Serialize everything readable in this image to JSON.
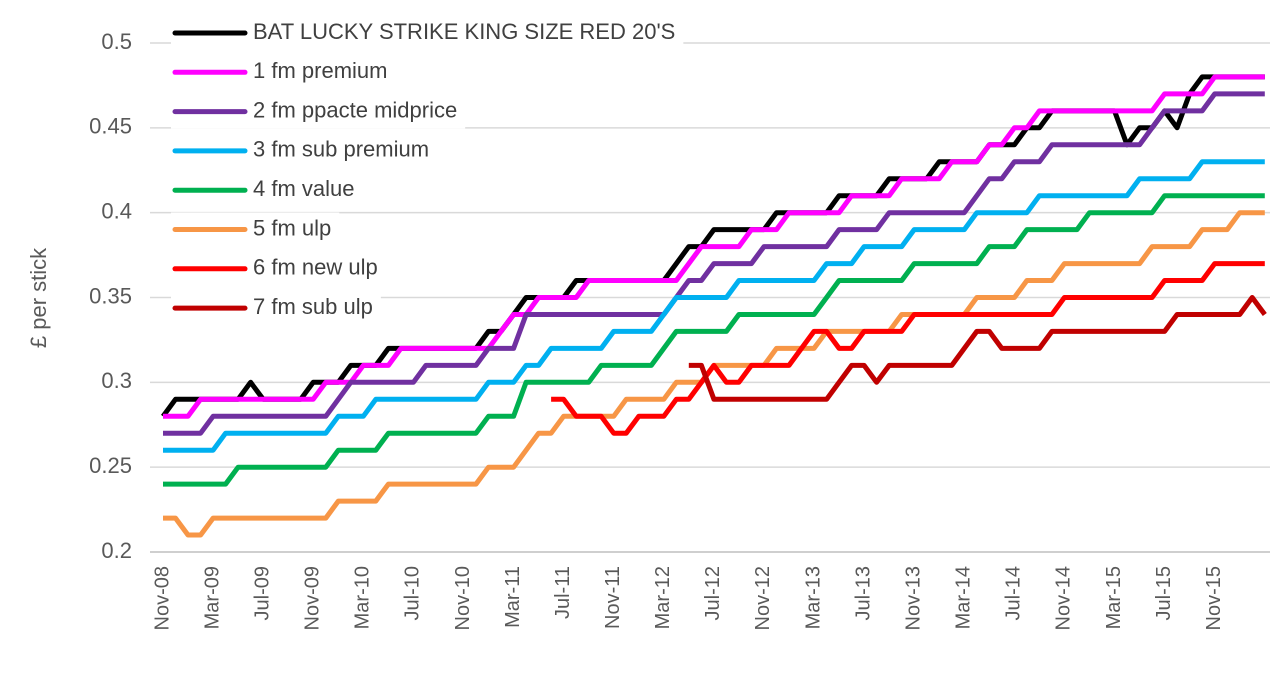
{
  "chart_data": {
    "type": "line",
    "y_label": "£ per stick",
    "categories": [
      "Nov-08",
      null,
      null,
      null,
      "Mar-09",
      null,
      null,
      null,
      "Jul-09",
      null,
      null,
      null,
      "Nov-09",
      null,
      null,
      null,
      "Mar-10",
      null,
      null,
      null,
      "Jul-10",
      null,
      null,
      null,
      "Nov-10",
      null,
      null,
      null,
      "Mar-11",
      null,
      null,
      null,
      "Jul-11",
      null,
      null,
      null,
      "Nov-11",
      null,
      null,
      null,
      "Mar-12",
      null,
      null,
      null,
      "Jul-12",
      null,
      null,
      null,
      "Nov-12",
      null,
      null,
      null,
      "Mar-13",
      null,
      null,
      null,
      "Jul-13",
      null,
      null,
      null,
      "Nov-13",
      null,
      null,
      null,
      "Mar-14",
      null,
      null,
      null,
      "Jul-14",
      null,
      null,
      null,
      "Nov-14",
      null,
      null,
      null,
      "Mar-15",
      null,
      null,
      null,
      "Jul-15",
      null,
      null,
      null,
      "Nov-15",
      null,
      null,
      null,
      null
    ],
    "ylim": [
      0.2,
      0.5
    ],
    "yticks": [
      0.2,
      0.25,
      0.3,
      0.35,
      0.4,
      0.45,
      0.5
    ],
    "grid": true,
    "legend": "upper-left",
    "series": [
      {
        "name": "BAT  LUCKY STRIKE KING SIZE RED 20'S",
        "color": "#000000",
        "values": [
          0.28,
          0.29,
          0.29,
          0.29,
          0.29,
          0.29,
          0.29,
          0.3,
          0.29,
          0.29,
          0.29,
          0.29,
          0.3,
          0.3,
          0.3,
          0.31,
          0.31,
          0.31,
          0.32,
          0.32,
          0.32,
          0.32,
          0.32,
          0.32,
          0.32,
          0.32,
          0.33,
          0.33,
          0.34,
          0.35,
          0.35,
          0.35,
          0.35,
          0.36,
          0.36,
          0.36,
          0.36,
          0.36,
          0.36,
          0.36,
          0.36,
          0.37,
          0.38,
          0.38,
          0.39,
          0.39,
          0.39,
          0.39,
          0.39,
          0.4,
          0.4,
          0.4,
          0.4,
          0.4,
          0.41,
          0.41,
          0.41,
          0.41,
          0.42,
          0.42,
          0.42,
          0.42,
          0.43,
          0.43,
          0.43,
          0.43,
          0.44,
          0.44,
          0.44,
          0.45,
          0.45,
          0.46,
          0.46,
          0.46,
          0.46,
          0.46,
          0.46,
          0.44,
          0.45,
          0.45,
          0.46,
          0.45,
          0.47,
          0.48,
          0.48,
          0.48,
          0.48,
          0.48,
          0.48
        ]
      },
      {
        "name": "1 fm premium",
        "color": "#ff00ff",
        "values": [
          0.28,
          0.28,
          0.28,
          0.29,
          0.29,
          0.29,
          0.29,
          0.29,
          0.29,
          0.29,
          0.29,
          0.29,
          0.29,
          0.3,
          0.3,
          0.3,
          0.31,
          0.31,
          0.31,
          0.32,
          0.32,
          0.32,
          0.32,
          0.32,
          0.32,
          0.32,
          0.32,
          0.33,
          0.34,
          0.34,
          0.35,
          0.35,
          0.35,
          0.35,
          0.36,
          0.36,
          0.36,
          0.36,
          0.36,
          0.36,
          0.36,
          0.36,
          0.37,
          0.38,
          0.38,
          0.38,
          0.38,
          0.39,
          0.39,
          0.39,
          0.4,
          0.4,
          0.4,
          0.4,
          0.4,
          0.41,
          0.41,
          0.41,
          0.41,
          0.42,
          0.42,
          0.42,
          0.42,
          0.43,
          0.43,
          0.43,
          0.44,
          0.44,
          0.45,
          0.45,
          0.46,
          0.46,
          0.46,
          0.46,
          0.46,
          0.46,
          0.46,
          0.46,
          0.46,
          0.46,
          0.47,
          0.47,
          0.47,
          0.47,
          0.48,
          0.48,
          0.48,
          0.48,
          0.48
        ]
      },
      {
        "name": "2 fm ppacte midprice",
        "color": "#7030a0",
        "values": [
          0.27,
          0.27,
          0.27,
          0.27,
          0.28,
          0.28,
          0.28,
          0.28,
          0.28,
          0.28,
          0.28,
          0.28,
          0.28,
          0.28,
          0.29,
          0.3,
          0.3,
          0.3,
          0.3,
          0.3,
          0.3,
          0.31,
          0.31,
          0.31,
          0.31,
          0.31,
          0.32,
          0.32,
          0.32,
          0.34,
          0.34,
          0.34,
          0.34,
          0.34,
          0.34,
          0.34,
          0.34,
          0.34,
          0.34,
          0.34,
          0.34,
          0.35,
          0.36,
          0.36,
          0.37,
          0.37,
          0.37,
          0.37,
          0.38,
          0.38,
          0.38,
          0.38,
          0.38,
          0.38,
          0.39,
          0.39,
          0.39,
          0.39,
          0.4,
          0.4,
          0.4,
          0.4,
          0.4,
          0.4,
          0.4,
          0.41,
          0.42,
          0.42,
          0.43,
          0.43,
          0.43,
          0.44,
          0.44,
          0.44,
          0.44,
          0.44,
          0.44,
          0.44,
          0.44,
          0.45,
          0.46,
          0.46,
          0.46,
          0.46,
          0.47,
          0.47,
          0.47,
          0.47,
          0.47
        ]
      },
      {
        "name": "3 fm sub premium",
        "color": "#00b0f0",
        "values": [
          0.26,
          0.26,
          0.26,
          0.26,
          0.26,
          0.27,
          0.27,
          0.27,
          0.27,
          0.27,
          0.27,
          0.27,
          0.27,
          0.27,
          0.28,
          0.28,
          0.28,
          0.29,
          0.29,
          0.29,
          0.29,
          0.29,
          0.29,
          0.29,
          0.29,
          0.29,
          0.3,
          0.3,
          0.3,
          0.31,
          0.31,
          0.32,
          0.32,
          0.32,
          0.32,
          0.32,
          0.33,
          0.33,
          0.33,
          0.33,
          0.34,
          0.35,
          0.35,
          0.35,
          0.35,
          0.35,
          0.36,
          0.36,
          0.36,
          0.36,
          0.36,
          0.36,
          0.36,
          0.37,
          0.37,
          0.37,
          0.38,
          0.38,
          0.38,
          0.38,
          0.39,
          0.39,
          0.39,
          0.39,
          0.39,
          0.4,
          0.4,
          0.4,
          0.4,
          0.4,
          0.41,
          0.41,
          0.41,
          0.41,
          0.41,
          0.41,
          0.41,
          0.41,
          0.42,
          0.42,
          0.42,
          0.42,
          0.42,
          0.43,
          0.43,
          0.43,
          0.43,
          0.43,
          0.43
        ]
      },
      {
        "name": "4 fm value",
        "color": "#00b050",
        "values": [
          0.24,
          0.24,
          0.24,
          0.24,
          0.24,
          0.24,
          0.25,
          0.25,
          0.25,
          0.25,
          0.25,
          0.25,
          0.25,
          0.25,
          0.26,
          0.26,
          0.26,
          0.26,
          0.27,
          0.27,
          0.27,
          0.27,
          0.27,
          0.27,
          0.27,
          0.27,
          0.28,
          0.28,
          0.28,
          0.3,
          0.3,
          0.3,
          0.3,
          0.3,
          0.3,
          0.31,
          0.31,
          0.31,
          0.31,
          0.31,
          0.32,
          0.33,
          0.33,
          0.33,
          0.33,
          0.33,
          0.34,
          0.34,
          0.34,
          0.34,
          0.34,
          0.34,
          0.34,
          0.35,
          0.36,
          0.36,
          0.36,
          0.36,
          0.36,
          0.36,
          0.37,
          0.37,
          0.37,
          0.37,
          0.37,
          0.37,
          0.38,
          0.38,
          0.38,
          0.39,
          0.39,
          0.39,
          0.39,
          0.39,
          0.4,
          0.4,
          0.4,
          0.4,
          0.4,
          0.4,
          0.41,
          0.41,
          0.41,
          0.41,
          0.41,
          0.41,
          0.41,
          0.41,
          0.41
        ]
      },
      {
        "name": "5 fm ulp",
        "color": "#f79646",
        "values": [
          0.22,
          0.22,
          0.21,
          0.21,
          0.22,
          0.22,
          0.22,
          0.22,
          0.22,
          0.22,
          0.22,
          0.22,
          0.22,
          0.22,
          0.23,
          0.23,
          0.23,
          0.23,
          0.24,
          0.24,
          0.24,
          0.24,
          0.24,
          0.24,
          0.24,
          0.24,
          0.25,
          0.25,
          0.25,
          0.26,
          0.27,
          0.27,
          0.28,
          0.28,
          0.28,
          0.28,
          0.28,
          0.29,
          0.29,
          0.29,
          0.29,
          0.3,
          0.3,
          0.3,
          0.31,
          0.31,
          0.31,
          0.31,
          0.31,
          0.32,
          0.32,
          0.32,
          0.32,
          0.33,
          0.33,
          0.33,
          0.33,
          0.33,
          0.33,
          0.34,
          0.34,
          0.34,
          0.34,
          0.34,
          0.34,
          0.35,
          0.35,
          0.35,
          0.35,
          0.36,
          0.36,
          0.36,
          0.37,
          0.37,
          0.37,
          0.37,
          0.37,
          0.37,
          0.37,
          0.38,
          0.38,
          0.38,
          0.38,
          0.39,
          0.39,
          0.39,
          0.4,
          0.4,
          0.4
        ]
      },
      {
        "name": "6 fm new ulp",
        "color": "#ff0000",
        "values": [
          null,
          null,
          null,
          null,
          null,
          null,
          null,
          null,
          null,
          null,
          null,
          null,
          null,
          null,
          null,
          null,
          null,
          null,
          null,
          null,
          null,
          null,
          null,
          null,
          null,
          null,
          null,
          null,
          null,
          null,
          null,
          0.29,
          0.29,
          0.28,
          0.28,
          0.28,
          0.27,
          0.27,
          0.28,
          0.28,
          0.28,
          0.29,
          0.29,
          0.3,
          0.31,
          0.3,
          0.3,
          0.31,
          0.31,
          0.31,
          0.31,
          0.32,
          0.33,
          0.33,
          0.32,
          0.32,
          0.33,
          0.33,
          0.33,
          0.33,
          0.34,
          0.34,
          0.34,
          0.34,
          0.34,
          0.34,
          0.34,
          0.34,
          0.34,
          0.34,
          0.34,
          0.34,
          0.35,
          0.35,
          0.35,
          0.35,
          0.35,
          0.35,
          0.35,
          0.35,
          0.36,
          0.36,
          0.36,
          0.36,
          0.37,
          0.37,
          0.37,
          0.37,
          0.37
        ]
      },
      {
        "name": "7 fm sub ulp",
        "color": "#c00000",
        "values": [
          null,
          null,
          null,
          null,
          null,
          null,
          null,
          null,
          null,
          null,
          null,
          null,
          null,
          null,
          null,
          null,
          null,
          null,
          null,
          null,
          null,
          null,
          null,
          null,
          null,
          null,
          null,
          null,
          null,
          null,
          null,
          null,
          null,
          null,
          null,
          null,
          null,
          null,
          null,
          null,
          null,
          null,
          0.31,
          0.31,
          0.29,
          0.29,
          0.29,
          0.29,
          0.29,
          0.29,
          0.29,
          0.29,
          0.29,
          0.29,
          0.3,
          0.31,
          0.31,
          0.3,
          0.31,
          0.31,
          0.31,
          0.31,
          0.31,
          0.31,
          0.32,
          0.33,
          0.33,
          0.32,
          0.32,
          0.32,
          0.32,
          0.33,
          0.33,
          0.33,
          0.33,
          0.33,
          0.33,
          0.33,
          0.33,
          0.33,
          0.33,
          0.34,
          0.34,
          0.34,
          0.34,
          0.34,
          0.34,
          0.35,
          0.34
        ]
      }
    ]
  }
}
